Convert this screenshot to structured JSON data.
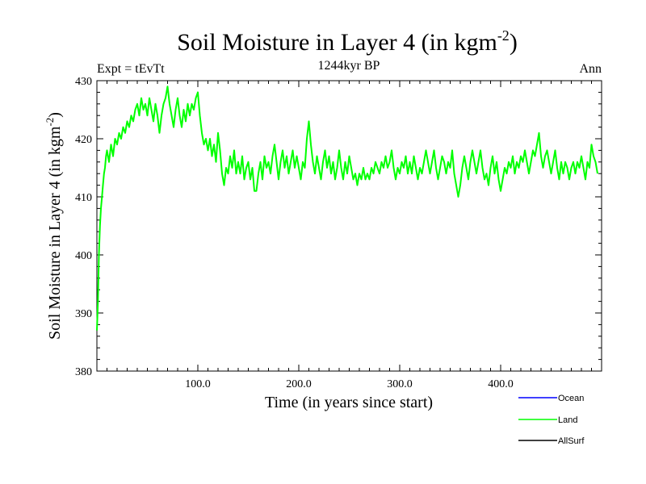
{
  "chart_data": {
    "type": "line",
    "title": "Soil Moisture in Layer 4 (in kgm",
    "title_sup": "-2",
    "title_close": ")",
    "subtitle_left": "Expt = tEvTt",
    "subtitle_center": "1244kyr BP",
    "subtitle_right": "Ann",
    "xlabel": "Time (in years since start)",
    "ylabel": "Soil Moisture in Layer 4 (in kgm",
    "ylabel_sup": "-2",
    "ylabel_close": ")",
    "xlim": [
      0,
      500
    ],
    "ylim": [
      380,
      430
    ],
    "xticks": [
      100,
      200,
      300,
      400
    ],
    "xtick_labels": [
      "100.0",
      "200.0",
      "300.0",
      "400.0"
    ],
    "yticks": [
      380,
      390,
      400,
      410,
      420,
      430
    ],
    "ytick_labels": [
      "380",
      "390",
      "400",
      "410",
      "420",
      "430"
    ],
    "legend": [
      {
        "name": "Ocean",
        "color": "#0000ff"
      },
      {
        "name": "Land",
        "color": "#00ff00"
      },
      {
        "name": "AllSurf",
        "color": "#000000"
      }
    ],
    "series": [
      {
        "name": "Land",
        "color": "#00ff00",
        "points": [
          [
            0,
            387
          ],
          [
            1,
            392
          ],
          [
            2,
            400
          ],
          [
            3,
            405
          ],
          [
            4,
            408
          ],
          [
            5,
            410
          ],
          [
            6,
            412
          ],
          [
            7,
            414
          ],
          [
            8,
            415
          ],
          [
            9,
            417
          ],
          [
            10,
            418
          ],
          [
            12,
            416
          ],
          [
            14,
            419
          ],
          [
            16,
            417
          ],
          [
            18,
            420
          ],
          [
            20,
            419
          ],
          [
            22,
            421
          ],
          [
            24,
            420
          ],
          [
            26,
            422
          ],
          [
            28,
            421
          ],
          [
            30,
            423
          ],
          [
            32,
            422
          ],
          [
            34,
            424
          ],
          [
            36,
            423
          ],
          [
            38,
            425
          ],
          [
            40,
            426
          ],
          [
            42,
            424
          ],
          [
            44,
            427
          ],
          [
            46,
            425
          ],
          [
            48,
            426
          ],
          [
            50,
            424
          ],
          [
            52,
            427
          ],
          [
            54,
            425
          ],
          [
            56,
            423
          ],
          [
            58,
            426
          ],
          [
            60,
            424
          ],
          [
            62,
            421
          ],
          [
            64,
            424
          ],
          [
            66,
            426
          ],
          [
            68,
            427
          ],
          [
            70,
            429
          ],
          [
            72,
            426
          ],
          [
            74,
            424
          ],
          [
            76,
            422
          ],
          [
            78,
            425
          ],
          [
            80,
            427
          ],
          [
            82,
            424
          ],
          [
            84,
            422
          ],
          [
            86,
            425
          ],
          [
            88,
            423
          ],
          [
            90,
            426
          ],
          [
            92,
            424
          ],
          [
            94,
            426
          ],
          [
            96,
            425
          ],
          [
            98,
            427
          ],
          [
            100,
            428
          ],
          [
            102,
            424
          ],
          [
            104,
            421
          ],
          [
            106,
            419
          ],
          [
            108,
            420
          ],
          [
            110,
            418
          ],
          [
            112,
            420
          ],
          [
            114,
            417
          ],
          [
            116,
            419
          ],
          [
            118,
            416
          ],
          [
            120,
            421
          ],
          [
            122,
            418
          ],
          [
            124,
            414
          ],
          [
            126,
            412
          ],
          [
            128,
            415
          ],
          [
            130,
            414
          ],
          [
            132,
            417
          ],
          [
            134,
            415
          ],
          [
            136,
            418
          ],
          [
            138,
            414
          ],
          [
            140,
            416
          ],
          [
            142,
            414
          ],
          [
            144,
            417
          ],
          [
            146,
            413
          ],
          [
            148,
            415
          ],
          [
            150,
            416
          ],
          [
            152,
            413
          ],
          [
            154,
            415
          ],
          [
            156,
            411
          ],
          [
            158,
            411
          ],
          [
            160,
            414
          ],
          [
            162,
            416
          ],
          [
            164,
            413
          ],
          [
            166,
            417
          ],
          [
            168,
            415
          ],
          [
            170,
            416
          ],
          [
            172,
            414
          ],
          [
            174,
            417
          ],
          [
            176,
            419
          ],
          [
            178,
            416
          ],
          [
            180,
            413
          ],
          [
            182,
            416
          ],
          [
            184,
            418
          ],
          [
            186,
            415
          ],
          [
            188,
            417
          ],
          [
            190,
            414
          ],
          [
            192,
            416
          ],
          [
            194,
            418
          ],
          [
            196,
            415
          ],
          [
            198,
            417
          ],
          [
            200,
            415
          ],
          [
            202,
            413
          ],
          [
            204,
            416
          ],
          [
            206,
            415
          ],
          [
            208,
            420
          ],
          [
            210,
            423
          ],
          [
            212,
            419
          ],
          [
            214,
            416
          ],
          [
            216,
            414
          ],
          [
            218,
            417
          ],
          [
            220,
            415
          ],
          [
            222,
            413
          ],
          [
            224,
            416
          ],
          [
            226,
            418
          ],
          [
            228,
            415
          ],
          [
            230,
            417
          ],
          [
            232,
            414
          ],
          [
            234,
            416
          ],
          [
            236,
            413
          ],
          [
            238,
            415
          ],
          [
            240,
            418
          ],
          [
            242,
            415
          ],
          [
            244,
            413
          ],
          [
            246,
            416
          ],
          [
            248,
            414
          ],
          [
            250,
            417
          ],
          [
            252,
            415
          ],
          [
            254,
            413
          ],
          [
            256,
            414
          ],
          [
            258,
            412
          ],
          [
            260,
            414
          ],
          [
            262,
            413
          ],
          [
            264,
            415
          ],
          [
            266,
            413
          ],
          [
            268,
            414
          ],
          [
            270,
            413
          ],
          [
            272,
            415
          ],
          [
            274,
            414
          ],
          [
            276,
            416
          ],
          [
            278,
            415
          ],
          [
            280,
            414
          ],
          [
            282,
            416
          ],
          [
            284,
            415
          ],
          [
            286,
            417
          ],
          [
            288,
            415
          ],
          [
            290,
            416
          ],
          [
            292,
            418
          ],
          [
            294,
            415
          ],
          [
            296,
            413
          ],
          [
            298,
            415
          ],
          [
            300,
            414
          ],
          [
            302,
            416
          ],
          [
            304,
            415
          ],
          [
            306,
            417
          ],
          [
            308,
            414
          ],
          [
            310,
            416
          ],
          [
            312,
            414
          ],
          [
            314,
            417
          ],
          [
            316,
            415
          ],
          [
            318,
            413
          ],
          [
            320,
            415
          ],
          [
            322,
            414
          ],
          [
            324,
            416
          ],
          [
            326,
            418
          ],
          [
            328,
            416
          ],
          [
            330,
            414
          ],
          [
            332,
            416
          ],
          [
            334,
            418
          ],
          [
            336,
            415
          ],
          [
            338,
            413
          ],
          [
            340,
            415
          ],
          [
            342,
            417
          ],
          [
            344,
            416
          ],
          [
            346,
            414
          ],
          [
            348,
            416
          ],
          [
            350,
            415
          ],
          [
            352,
            418
          ],
          [
            354,
            414
          ],
          [
            356,
            412
          ],
          [
            358,
            410
          ],
          [
            360,
            412
          ],
          [
            362,
            415
          ],
          [
            364,
            417
          ],
          [
            366,
            415
          ],
          [
            368,
            413
          ],
          [
            370,
            416
          ],
          [
            372,
            418
          ],
          [
            374,
            416
          ],
          [
            376,
            414
          ],
          [
            378,
            416
          ],
          [
            380,
            418
          ],
          [
            382,
            415
          ],
          [
            384,
            413
          ],
          [
            386,
            414
          ],
          [
            388,
            412
          ],
          [
            390,
            415
          ],
          [
            392,
            417
          ],
          [
            394,
            414
          ],
          [
            396,
            416
          ],
          [
            398,
            413
          ],
          [
            400,
            411
          ],
          [
            402,
            413
          ],
          [
            404,
            415
          ],
          [
            406,
            414
          ],
          [
            408,
            416
          ],
          [
            410,
            415
          ],
          [
            412,
            417
          ],
          [
            414,
            414
          ],
          [
            416,
            416
          ],
          [
            418,
            415
          ],
          [
            420,
            417
          ],
          [
            422,
            416
          ],
          [
            424,
            418
          ],
          [
            426,
            416
          ],
          [
            428,
            414
          ],
          [
            430,
            416
          ],
          [
            432,
            418
          ],
          [
            434,
            417
          ],
          [
            436,
            419
          ],
          [
            438,
            421
          ],
          [
            440,
            417
          ],
          [
            442,
            415
          ],
          [
            444,
            417
          ],
          [
            446,
            418
          ],
          [
            448,
            416
          ],
          [
            450,
            414
          ],
          [
            452,
            416
          ],
          [
            454,
            418
          ],
          [
            456,
            415
          ],
          [
            458,
            413
          ],
          [
            460,
            416
          ],
          [
            462,
            414
          ],
          [
            464,
            416
          ],
          [
            466,
            415
          ],
          [
            468,
            413
          ],
          [
            470,
            415
          ],
          [
            472,
            416
          ],
          [
            474,
            414
          ],
          [
            476,
            416
          ],
          [
            478,
            415
          ],
          [
            480,
            417
          ],
          [
            482,
            415
          ],
          [
            484,
            413
          ],
          [
            486,
            416
          ],
          [
            488,
            415
          ],
          [
            490,
            419
          ],
          [
            492,
            417
          ],
          [
            494,
            416
          ],
          [
            496,
            414
          ]
        ]
      }
    ]
  }
}
